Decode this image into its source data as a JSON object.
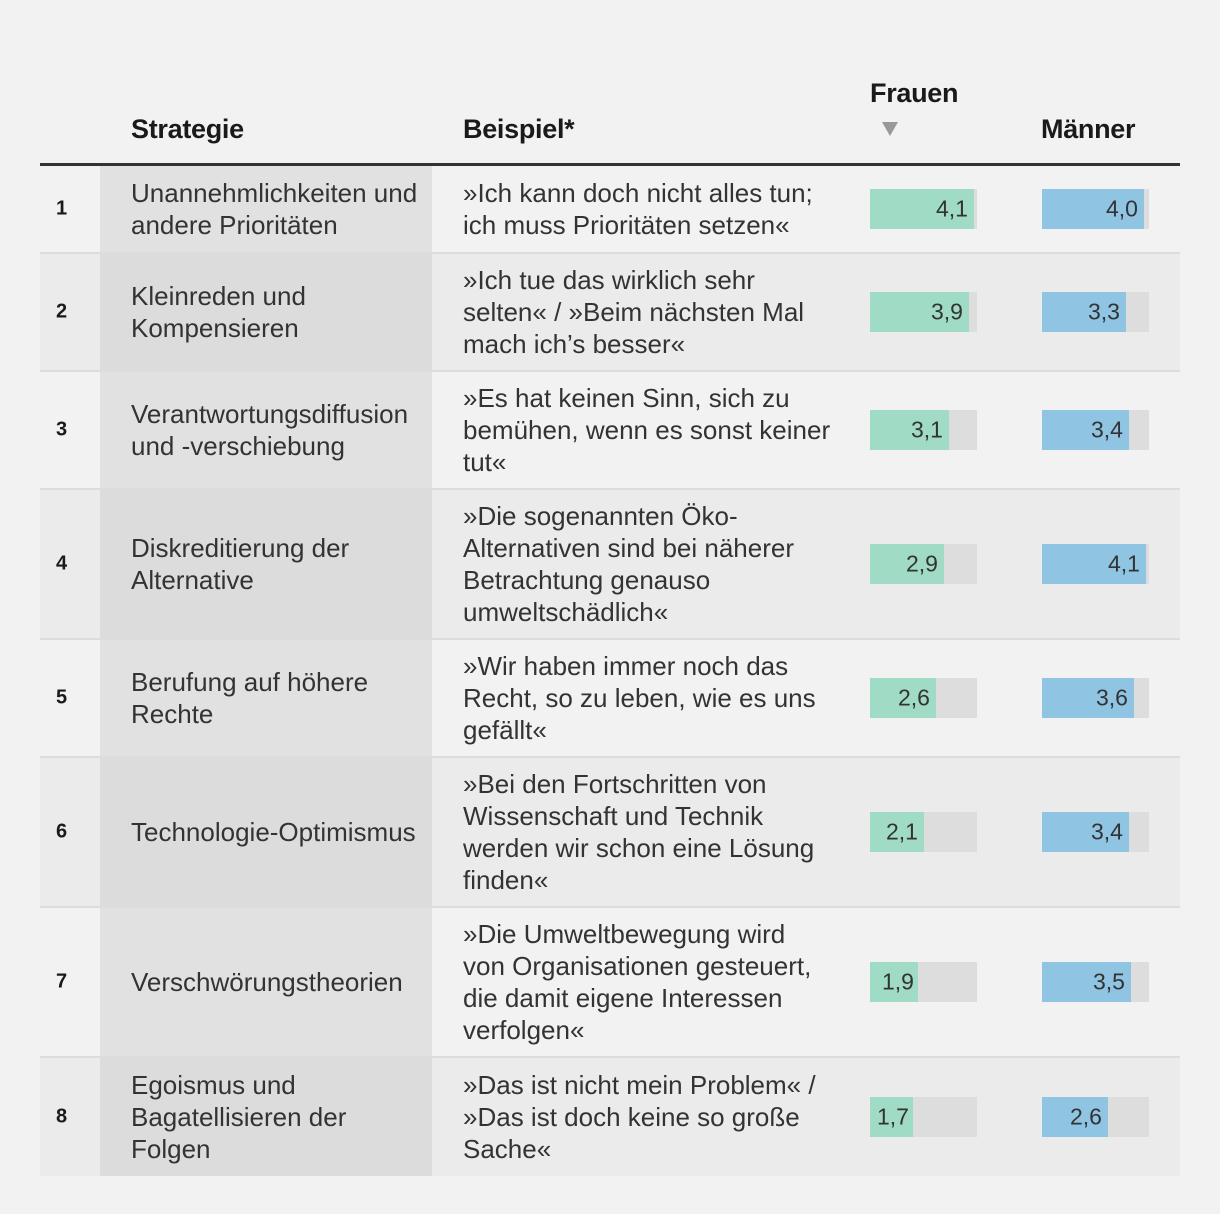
{
  "headers": {
    "strategie": "Strategie",
    "beispiel": "Beispiel*",
    "frauen": "Frauen",
    "maenner": "Männer"
  },
  "colors": {
    "frauen_bar": "#a0dbc6",
    "maenner_bar": "#8fc4e3",
    "bar_track": "#dddddd"
  },
  "chart_data": {
    "type": "table",
    "scale_max": 4.2,
    "sort_column": "Frauen",
    "columns": [
      "Strategie",
      "Beispiel*",
      "Frauen",
      "Männer"
    ],
    "rows": [
      {
        "nr": "1",
        "strategie": "Unannehmlichkeiten und andere Prioritäten",
        "beispiel": "»Ich kann doch nicht alles tun; ich muss Prioritäten setzen«",
        "frauen": 4.1,
        "frauen_label": "4,1",
        "maenner": 4.0,
        "maenner_label": "4,0"
      },
      {
        "nr": "2",
        "strategie": "Kleinreden und Kompensieren",
        "beispiel": "»Ich tue das wirklich sehr selten« / »Beim nächsten Mal mach ich’s besser«",
        "frauen": 3.9,
        "frauen_label": "3,9",
        "maenner": 3.3,
        "maenner_label": "3,3"
      },
      {
        "nr": "3",
        "strategie": "Verantwortungsdiffusion und -verschiebung",
        "beispiel": "»Es hat keinen Sinn, sich zu bemühen, wenn es sonst keiner tut«",
        "frauen": 3.1,
        "frauen_label": "3,1",
        "maenner": 3.4,
        "maenner_label": "3,4"
      },
      {
        "nr": "4",
        "strategie": "Diskreditierung der Alternative",
        "beispiel": "»Die sogenannten Öko-Alternativen sind bei näherer Betrachtung genauso umweltschädlich«",
        "frauen": 2.9,
        "frauen_label": "2,9",
        "maenner": 4.1,
        "maenner_label": "4,1"
      },
      {
        "nr": "5",
        "strategie": "Berufung auf höhere Rechte",
        "beispiel": "»Wir haben immer noch das Recht, so zu leben, wie es uns gefällt«",
        "frauen": 2.6,
        "frauen_label": "2,6",
        "maenner": 3.6,
        "maenner_label": "3,6"
      },
      {
        "nr": "6",
        "strategie": "Technologie-Optimismus",
        "beispiel": "»Bei den Fortschritten von Wissenschaft und Technik werden wir schon eine Lösung finden«",
        "frauen": 2.1,
        "frauen_label": "2,1",
        "maenner": 3.4,
        "maenner_label": "3,4"
      },
      {
        "nr": "7",
        "strategie": "Verschwörungstheorien",
        "beispiel": "»Die Umweltbewegung wird von Organisationen gesteuert, die damit eigene Interessen verfolgen«",
        "frauen": 1.9,
        "frauen_label": "1,9",
        "maenner": 3.5,
        "maenner_label": "3,5"
      },
      {
        "nr": "8",
        "strategie": "Egoismus und Bagatellisieren der Folgen",
        "beispiel": "»Das ist nicht mein Problem« / »Das ist doch keine so große Sache«",
        "frauen": 1.7,
        "frauen_label": "1,7",
        "maenner": 2.6,
        "maenner_label": "2,6"
      }
    ]
  }
}
